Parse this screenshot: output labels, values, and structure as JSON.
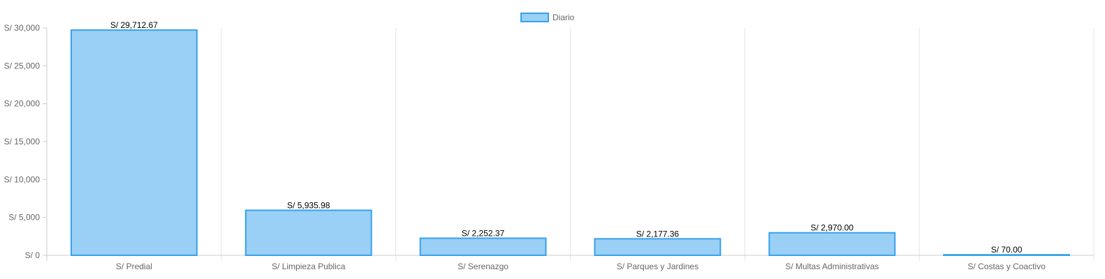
{
  "chart_data": {
    "type": "bar",
    "categories": [
      "S/ Predial",
      "S/ Limpieza Publica",
      "S/ Serenazgo",
      "S/ Parques y Jardines",
      "S/ Multas Administrativas",
      "S/ Costas y Coactivo"
    ],
    "series": [
      {
        "name": "Diario",
        "values": [
          29712.67,
          5935.98,
          2252.37,
          2177.36,
          2970.0,
          70.0
        ],
        "fill_color": "#9ad0f5",
        "border_color": "#36a2eb"
      }
    ],
    "data_labels": [
      "S/ 29,712.67",
      "S/ 5,935.98",
      "S/ 2,252.37",
      "S/ 2,177.36",
      "S/ 2,970.00",
      "S/ 70.00"
    ],
    "y_ticks": [
      0,
      5000,
      10000,
      15000,
      20000,
      25000,
      30000
    ],
    "y_tick_labels": [
      "S/ 0",
      "S/ 5,000",
      "S/ 10,000",
      "S/ 15,000",
      "S/ 20,000",
      "S/ 25,000",
      "S/ 30,000"
    ],
    "ylim": [
      0,
      30000
    ],
    "title": "",
    "xlabel": "",
    "ylabel": "",
    "legend_position": "top-center",
    "grid": true,
    "grid_color": "#e5e5e5",
    "axis_color": "#cccccc"
  }
}
